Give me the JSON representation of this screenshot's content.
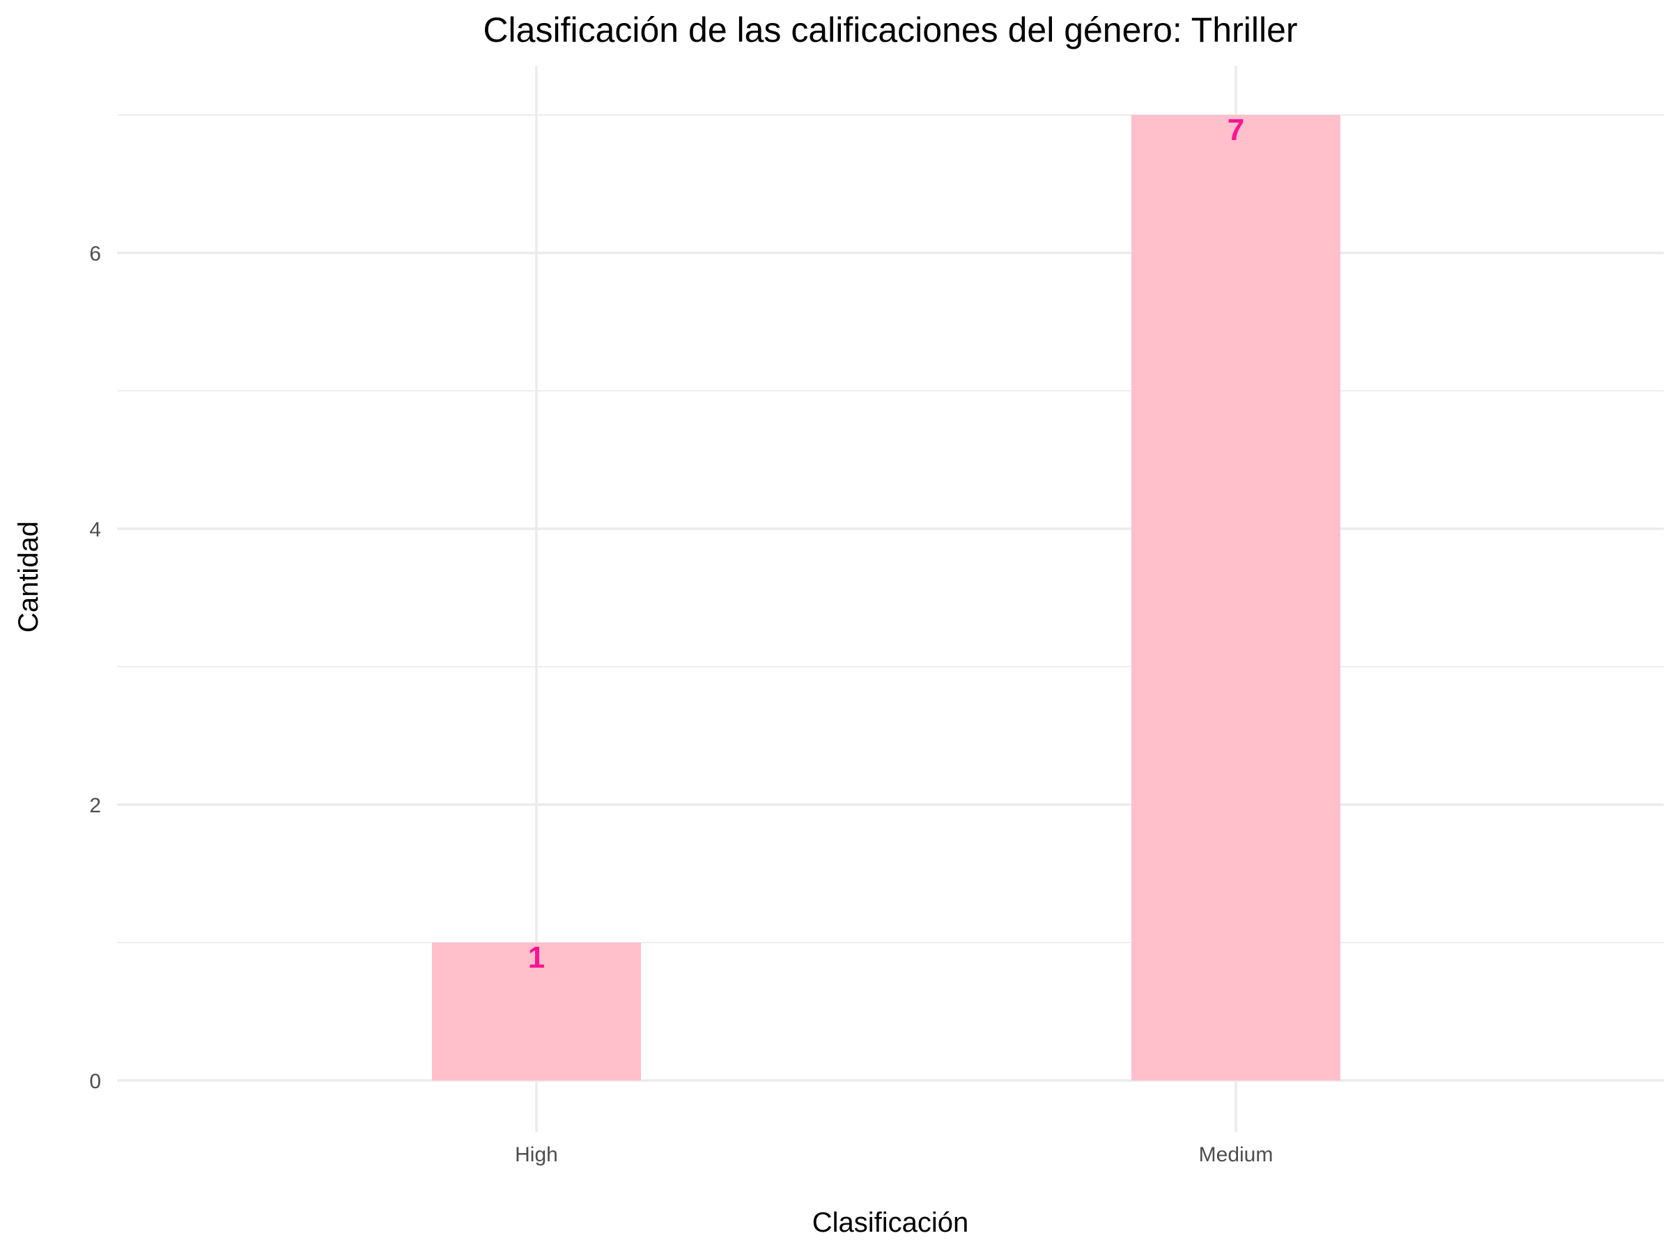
{
  "chart_data": {
    "type": "bar",
    "title": "Clasificación de las calificaciones del género: Thriller",
    "xlabel": "Clasificación",
    "ylabel": "Cantidad",
    "categories": [
      "High",
      "Medium"
    ],
    "values": [
      1,
      7
    ],
    "data_labels": [
      "1",
      "7"
    ],
    "ylim": [
      0,
      7
    ],
    "yticks": [
      0,
      2,
      4,
      6
    ],
    "ytick_labels": [
      "0",
      "2",
      "4",
      "6"
    ],
    "grid": true,
    "legend": "none",
    "colors": {
      "bar_fill": "#FFC0CB",
      "data_label": "#FF1493",
      "grid": "#EBEBEB",
      "tick_text": "#4D4D4D"
    }
  }
}
